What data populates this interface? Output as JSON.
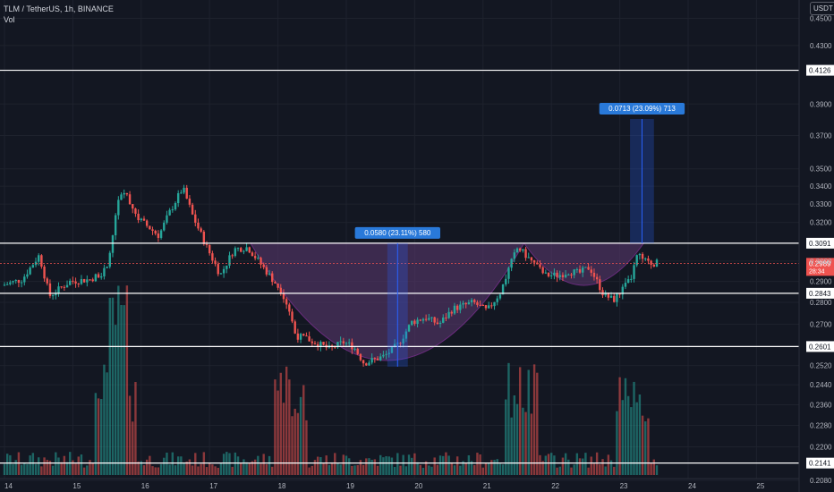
{
  "header": {
    "symbol_line": "TLM / TetherUS, 1h, BINANCE",
    "volume_label": "Vol"
  },
  "currency_button": "USDT",
  "price_axis": {
    "ticks": [
      "0.4500",
      "0.4300",
      "0.3900",
      "0.3700",
      "0.3500",
      "0.3400",
      "0.3300",
      "0.3200",
      "0.3000",
      "0.2900",
      "0.2800",
      "0.2700",
      "0.2520",
      "0.2440",
      "0.2360",
      "0.2280",
      "0.2200",
      "0.2080"
    ]
  },
  "time_axis": {
    "ticks": [
      "14",
      "15",
      "16",
      "17",
      "18",
      "19",
      "20",
      "21",
      "22",
      "23",
      "24",
      "25"
    ]
  },
  "levels": [
    {
      "value": 0.4126,
      "label": "0.4126"
    },
    {
      "value": 0.3091,
      "label": "0.3091"
    },
    {
      "value": 0.2843,
      "label": "0.2843"
    },
    {
      "value": 0.2601,
      "label": "0.2601"
    },
    {
      "value": 0.2141,
      "label": "0.2141"
    }
  ],
  "current_price": {
    "label": "0.2989",
    "countdown": "28:34"
  },
  "measurements": [
    {
      "label": "0.0580 (23.11%) 580"
    },
    {
      "label": "0.0713 (23.09%) 713"
    }
  ],
  "colors": {
    "background": "#131722",
    "up": "#26a69a",
    "down": "#ef5350",
    "pattern_fill": "#5e3a73",
    "measure": "#2962ff",
    "label_bg": "#2979d9"
  },
  "chart_data": {
    "type": "candlestick",
    "title": "TLM / TetherUS, 1h, BINANCE",
    "x_ticks": [
      "14",
      "15",
      "16",
      "17",
      "18",
      "19",
      "20",
      "21",
      "22",
      "23",
      "24",
      "25"
    ],
    "ylim": [
      0.204,
      0.464
    ],
    "y_scale": "log",
    "series": [
      {
        "type": "line",
        "values": [
          [
            14.0,
            0.288
          ],
          [
            14.3,
            0.291
          ],
          [
            14.55,
            0.303
          ],
          [
            14.7,
            0.283
          ],
          [
            15.0,
            0.29
          ],
          [
            15.3,
            0.291
          ],
          [
            15.55,
            0.296
          ],
          [
            15.7,
            0.331
          ],
          [
            15.8,
            0.337
          ],
          [
            16.0,
            0.322
          ],
          [
            16.3,
            0.313
          ],
          [
            16.45,
            0.325
          ],
          [
            16.65,
            0.339
          ],
          [
            16.8,
            0.323
          ],
          [
            17.0,
            0.307
          ],
          [
            17.2,
            0.293
          ],
          [
            17.4,
            0.306
          ],
          [
            17.6,
            0.307
          ],
          [
            17.8,
            0.298
          ],
          [
            18.1,
            0.285
          ],
          [
            18.2,
            0.277
          ],
          [
            18.3,
            0.265
          ],
          [
            18.5,
            0.263
          ],
          [
            18.65,
            0.261
          ],
          [
            18.8,
            0.259
          ],
          [
            19.0,
            0.262
          ],
          [
            19.15,
            0.26
          ],
          [
            19.3,
            0.253
          ],
          [
            19.6,
            0.256
          ],
          [
            19.8,
            0.261
          ],
          [
            20.0,
            0.271
          ],
          [
            20.2,
            0.273
          ],
          [
            20.4,
            0.27
          ],
          [
            20.6,
            0.277
          ],
          [
            20.9,
            0.28
          ],
          [
            21.1,
            0.276
          ],
          [
            21.3,
            0.285
          ],
          [
            21.45,
            0.299
          ],
          [
            21.55,
            0.307
          ],
          [
            21.75,
            0.3
          ],
          [
            21.95,
            0.293
          ],
          [
            22.15,
            0.293
          ],
          [
            22.3,
            0.295
          ],
          [
            22.45,
            0.294
          ],
          [
            22.6,
            0.297
          ],
          [
            22.8,
            0.284
          ],
          [
            22.95,
            0.281
          ],
          [
            23.05,
            0.285
          ],
          [
            23.2,
            0.291
          ],
          [
            23.3,
            0.303
          ],
          [
            23.45,
            0.299
          ],
          [
            23.55,
            0.299
          ]
        ]
      }
    ],
    "volume_spikes": [
      {
        "x": 15.55,
        "label": "high"
      },
      {
        "x": 15.7,
        "label": "high"
      },
      {
        "x": 18.2,
        "label": "spike"
      },
      {
        "x": 21.55,
        "label": "spike"
      },
      {
        "x": 23.2,
        "label": "spike"
      }
    ]
  }
}
